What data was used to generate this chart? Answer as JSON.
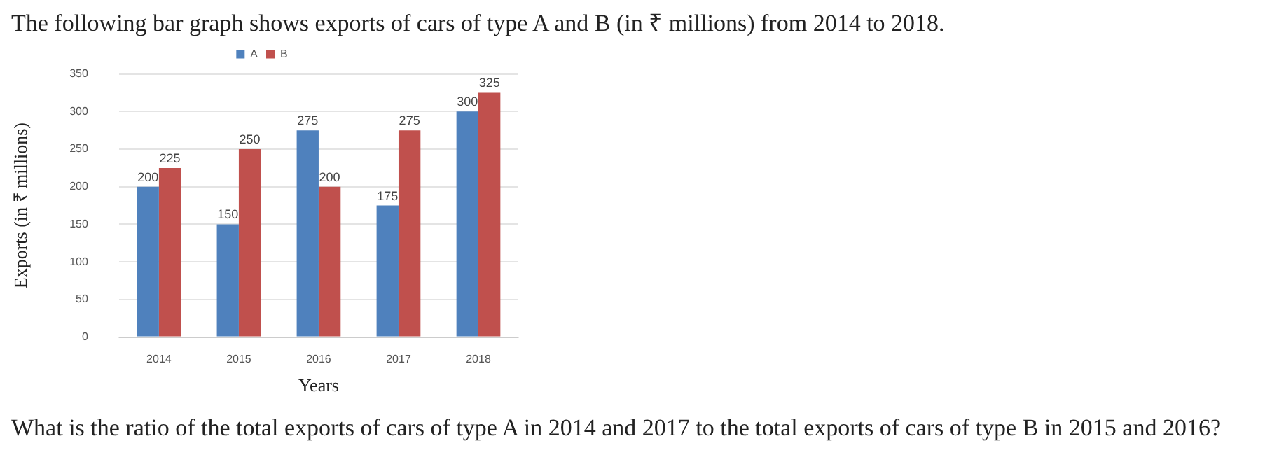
{
  "chart_data": {
    "type": "bar",
    "title": "The following bar graph shows exports of cars of type A and B (in ₹ millions) from 2014 to 2018.",
    "xlabel": "Years",
    "ylabel": "Exports (in ₹ millions)",
    "categories": [
      "2014",
      "2015",
      "2016",
      "2017",
      "2018"
    ],
    "series": [
      {
        "name": "A",
        "color": "#4f81bd",
        "values": [
          200,
          150,
          275,
          175,
          300
        ]
      },
      {
        "name": "B",
        "color": "#c0504d",
        "values": [
          225,
          250,
          200,
          275,
          325
        ]
      }
    ],
    "ylim": [
      0,
      350
    ],
    "yticks": [
      0,
      50,
      100,
      150,
      200,
      250,
      300,
      350
    ],
    "grid": "y",
    "legend": "top",
    "data_labels": true,
    "annotations": [
      "What is the ratio of the total exports of cars of type A in 2014 and 2017 to the total exports of cars of type B in 2015 and 2016?"
    ]
  }
}
